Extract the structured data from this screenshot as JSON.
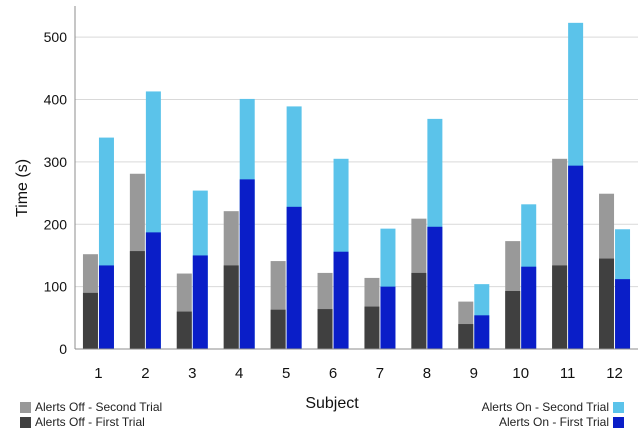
{
  "chart_data": {
    "type": "bar",
    "title": "",
    "xlabel": "Subject",
    "ylabel": "Time (s)",
    "ylim": [
      0,
      550
    ],
    "yticks": [
      0,
      100,
      200,
      300,
      400,
      500
    ],
    "grid": true,
    "categories": [
      "1",
      "2",
      "3",
      "4",
      "5",
      "6",
      "7",
      "8",
      "9",
      "10",
      "11",
      "12"
    ],
    "series": [
      {
        "name": "Alerts Off - First Trial",
        "group": "Alerts Off",
        "color": "#404040",
        "values": [
          90,
          157,
          60,
          134,
          63,
          64,
          68,
          122,
          40,
          93,
          134,
          145
        ]
      },
      {
        "name": "Alerts Off - Second Trial",
        "group": "Alerts Off",
        "color": "#999999",
        "values": [
          152,
          281,
          121,
          221,
          141,
          122,
          114,
          209,
          76,
          173,
          305,
          249
        ]
      },
      {
        "name": "Alerts On - First Trial",
        "group": "Alerts On",
        "color": "#0a1ec8",
        "values": [
          134,
          187,
          150,
          272,
          228,
          156,
          100,
          196,
          54,
          132,
          294,
          112
        ]
      },
      {
        "name": "Alerts On - Second Trial",
        "group": "Alerts On",
        "color": "#5bc3ea",
        "values": [
          339,
          413,
          254,
          401,
          389,
          305,
          193,
          369,
          104,
          232,
          523,
          192
        ]
      }
    ],
    "legend": {
      "left": [
        {
          "label": "Alerts Off - Second Trial",
          "color": "#999999"
        },
        {
          "label": "Alerts Off - First Trial",
          "color": "#404040"
        }
      ],
      "right": [
        {
          "label": "Alerts On - Second Trial",
          "color": "#5bc3ea"
        },
        {
          "label": "Alerts On - First Trial",
          "color": "#0a1ec8"
        }
      ]
    }
  }
}
